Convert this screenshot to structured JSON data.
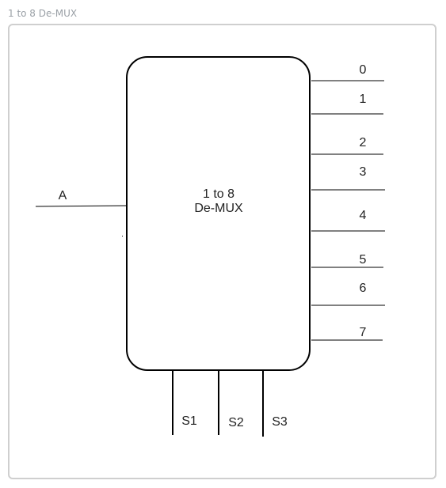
{
  "page": {
    "title": "1 to 8 De-MUX"
  },
  "block": {
    "line1": "1 to 8",
    "line2": "De-MUX"
  },
  "input": {
    "label": "A"
  },
  "outputs": [
    "0",
    "1",
    "2",
    "3",
    "4",
    "5",
    "6",
    "7"
  ],
  "selects": [
    "S1",
    "S2",
    "S3"
  ],
  "colors": {
    "stroke": "#000000",
    "frame": "#cfcfcf",
    "caption": "#9aa0a6"
  }
}
